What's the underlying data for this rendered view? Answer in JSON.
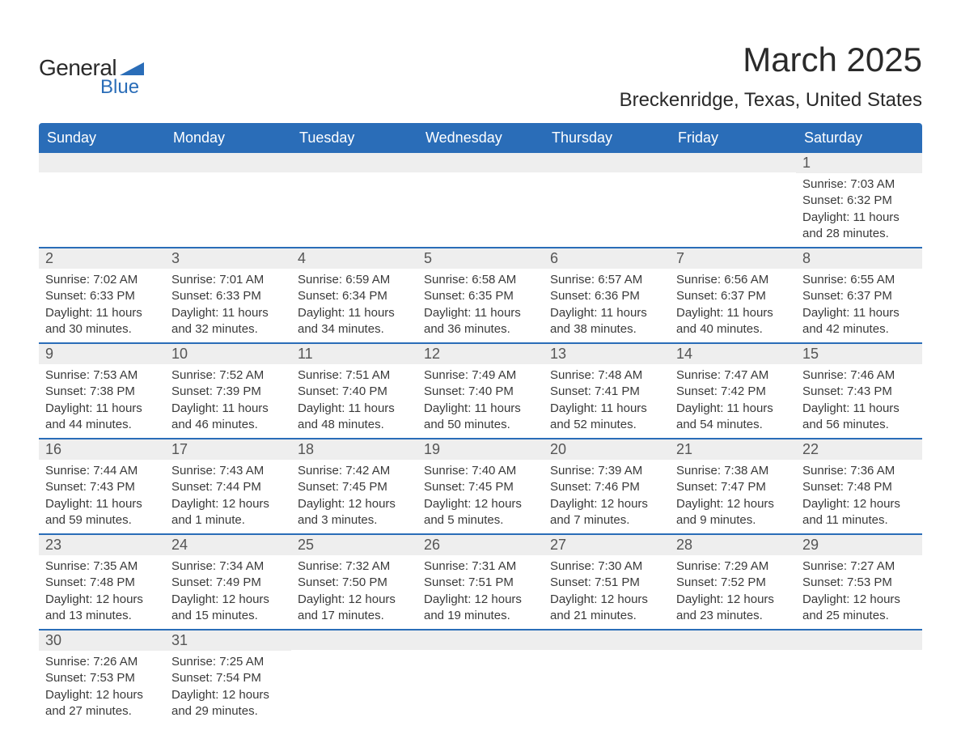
{
  "brand": {
    "text_general": "General",
    "text_blue": "Blue",
    "triangle_color": "#2a6db8"
  },
  "title": "March 2025",
  "location": "Breckenridge, Texas, United States",
  "colors": {
    "header_bg": "#2a6db8",
    "header_text": "#ffffff",
    "daynum_bg": "#eeeeee",
    "body_text": "#3a3a3a",
    "row_divider": "#2a6db8",
    "page_bg": "#ffffff"
  },
  "day_headers": [
    "Sunday",
    "Monday",
    "Tuesday",
    "Wednesday",
    "Thursday",
    "Friday",
    "Saturday"
  ],
  "weeks": [
    [
      {
        "n": "",
        "sr": "",
        "ss": "",
        "dl1": "",
        "dl2": ""
      },
      {
        "n": "",
        "sr": "",
        "ss": "",
        "dl1": "",
        "dl2": ""
      },
      {
        "n": "",
        "sr": "",
        "ss": "",
        "dl1": "",
        "dl2": ""
      },
      {
        "n": "",
        "sr": "",
        "ss": "",
        "dl1": "",
        "dl2": ""
      },
      {
        "n": "",
        "sr": "",
        "ss": "",
        "dl1": "",
        "dl2": ""
      },
      {
        "n": "",
        "sr": "",
        "ss": "",
        "dl1": "",
        "dl2": ""
      },
      {
        "n": "1",
        "sr": "Sunrise: 7:03 AM",
        "ss": "Sunset: 6:32 PM",
        "dl1": "Daylight: 11 hours",
        "dl2": "and 28 minutes."
      }
    ],
    [
      {
        "n": "2",
        "sr": "Sunrise: 7:02 AM",
        "ss": "Sunset: 6:33 PM",
        "dl1": "Daylight: 11 hours",
        "dl2": "and 30 minutes."
      },
      {
        "n": "3",
        "sr": "Sunrise: 7:01 AM",
        "ss": "Sunset: 6:33 PM",
        "dl1": "Daylight: 11 hours",
        "dl2": "and 32 minutes."
      },
      {
        "n": "4",
        "sr": "Sunrise: 6:59 AM",
        "ss": "Sunset: 6:34 PM",
        "dl1": "Daylight: 11 hours",
        "dl2": "and 34 minutes."
      },
      {
        "n": "5",
        "sr": "Sunrise: 6:58 AM",
        "ss": "Sunset: 6:35 PM",
        "dl1": "Daylight: 11 hours",
        "dl2": "and 36 minutes."
      },
      {
        "n": "6",
        "sr": "Sunrise: 6:57 AM",
        "ss": "Sunset: 6:36 PM",
        "dl1": "Daylight: 11 hours",
        "dl2": "and 38 minutes."
      },
      {
        "n": "7",
        "sr": "Sunrise: 6:56 AM",
        "ss": "Sunset: 6:37 PM",
        "dl1": "Daylight: 11 hours",
        "dl2": "and 40 minutes."
      },
      {
        "n": "8",
        "sr": "Sunrise: 6:55 AM",
        "ss": "Sunset: 6:37 PM",
        "dl1": "Daylight: 11 hours",
        "dl2": "and 42 minutes."
      }
    ],
    [
      {
        "n": "9",
        "sr": "Sunrise: 7:53 AM",
        "ss": "Sunset: 7:38 PM",
        "dl1": "Daylight: 11 hours",
        "dl2": "and 44 minutes."
      },
      {
        "n": "10",
        "sr": "Sunrise: 7:52 AM",
        "ss": "Sunset: 7:39 PM",
        "dl1": "Daylight: 11 hours",
        "dl2": "and 46 minutes."
      },
      {
        "n": "11",
        "sr": "Sunrise: 7:51 AM",
        "ss": "Sunset: 7:40 PM",
        "dl1": "Daylight: 11 hours",
        "dl2": "and 48 minutes."
      },
      {
        "n": "12",
        "sr": "Sunrise: 7:49 AM",
        "ss": "Sunset: 7:40 PM",
        "dl1": "Daylight: 11 hours",
        "dl2": "and 50 minutes."
      },
      {
        "n": "13",
        "sr": "Sunrise: 7:48 AM",
        "ss": "Sunset: 7:41 PM",
        "dl1": "Daylight: 11 hours",
        "dl2": "and 52 minutes."
      },
      {
        "n": "14",
        "sr": "Sunrise: 7:47 AM",
        "ss": "Sunset: 7:42 PM",
        "dl1": "Daylight: 11 hours",
        "dl2": "and 54 minutes."
      },
      {
        "n": "15",
        "sr": "Sunrise: 7:46 AM",
        "ss": "Sunset: 7:43 PM",
        "dl1": "Daylight: 11 hours",
        "dl2": "and 56 minutes."
      }
    ],
    [
      {
        "n": "16",
        "sr": "Sunrise: 7:44 AM",
        "ss": "Sunset: 7:43 PM",
        "dl1": "Daylight: 11 hours",
        "dl2": "and 59 minutes."
      },
      {
        "n": "17",
        "sr": "Sunrise: 7:43 AM",
        "ss": "Sunset: 7:44 PM",
        "dl1": "Daylight: 12 hours",
        "dl2": "and 1 minute."
      },
      {
        "n": "18",
        "sr": "Sunrise: 7:42 AM",
        "ss": "Sunset: 7:45 PM",
        "dl1": "Daylight: 12 hours",
        "dl2": "and 3 minutes."
      },
      {
        "n": "19",
        "sr": "Sunrise: 7:40 AM",
        "ss": "Sunset: 7:45 PM",
        "dl1": "Daylight: 12 hours",
        "dl2": "and 5 minutes."
      },
      {
        "n": "20",
        "sr": "Sunrise: 7:39 AM",
        "ss": "Sunset: 7:46 PM",
        "dl1": "Daylight: 12 hours",
        "dl2": "and 7 minutes."
      },
      {
        "n": "21",
        "sr": "Sunrise: 7:38 AM",
        "ss": "Sunset: 7:47 PM",
        "dl1": "Daylight: 12 hours",
        "dl2": "and 9 minutes."
      },
      {
        "n": "22",
        "sr": "Sunrise: 7:36 AM",
        "ss": "Sunset: 7:48 PM",
        "dl1": "Daylight: 12 hours",
        "dl2": "and 11 minutes."
      }
    ],
    [
      {
        "n": "23",
        "sr": "Sunrise: 7:35 AM",
        "ss": "Sunset: 7:48 PM",
        "dl1": "Daylight: 12 hours",
        "dl2": "and 13 minutes."
      },
      {
        "n": "24",
        "sr": "Sunrise: 7:34 AM",
        "ss": "Sunset: 7:49 PM",
        "dl1": "Daylight: 12 hours",
        "dl2": "and 15 minutes."
      },
      {
        "n": "25",
        "sr": "Sunrise: 7:32 AM",
        "ss": "Sunset: 7:50 PM",
        "dl1": "Daylight: 12 hours",
        "dl2": "and 17 minutes."
      },
      {
        "n": "26",
        "sr": "Sunrise: 7:31 AM",
        "ss": "Sunset: 7:51 PM",
        "dl1": "Daylight: 12 hours",
        "dl2": "and 19 minutes."
      },
      {
        "n": "27",
        "sr": "Sunrise: 7:30 AM",
        "ss": "Sunset: 7:51 PM",
        "dl1": "Daylight: 12 hours",
        "dl2": "and 21 minutes."
      },
      {
        "n": "28",
        "sr": "Sunrise: 7:29 AM",
        "ss": "Sunset: 7:52 PM",
        "dl1": "Daylight: 12 hours",
        "dl2": "and 23 minutes."
      },
      {
        "n": "29",
        "sr": "Sunrise: 7:27 AM",
        "ss": "Sunset: 7:53 PM",
        "dl1": "Daylight: 12 hours",
        "dl2": "and 25 minutes."
      }
    ],
    [
      {
        "n": "30",
        "sr": "Sunrise: 7:26 AM",
        "ss": "Sunset: 7:53 PM",
        "dl1": "Daylight: 12 hours",
        "dl2": "and 27 minutes."
      },
      {
        "n": "31",
        "sr": "Sunrise: 7:25 AM",
        "ss": "Sunset: 7:54 PM",
        "dl1": "Daylight: 12 hours",
        "dl2": "and 29 minutes."
      },
      {
        "n": "",
        "sr": "",
        "ss": "",
        "dl1": "",
        "dl2": ""
      },
      {
        "n": "",
        "sr": "",
        "ss": "",
        "dl1": "",
        "dl2": ""
      },
      {
        "n": "",
        "sr": "",
        "ss": "",
        "dl1": "",
        "dl2": ""
      },
      {
        "n": "",
        "sr": "",
        "ss": "",
        "dl1": "",
        "dl2": ""
      },
      {
        "n": "",
        "sr": "",
        "ss": "",
        "dl1": "",
        "dl2": ""
      }
    ]
  ]
}
